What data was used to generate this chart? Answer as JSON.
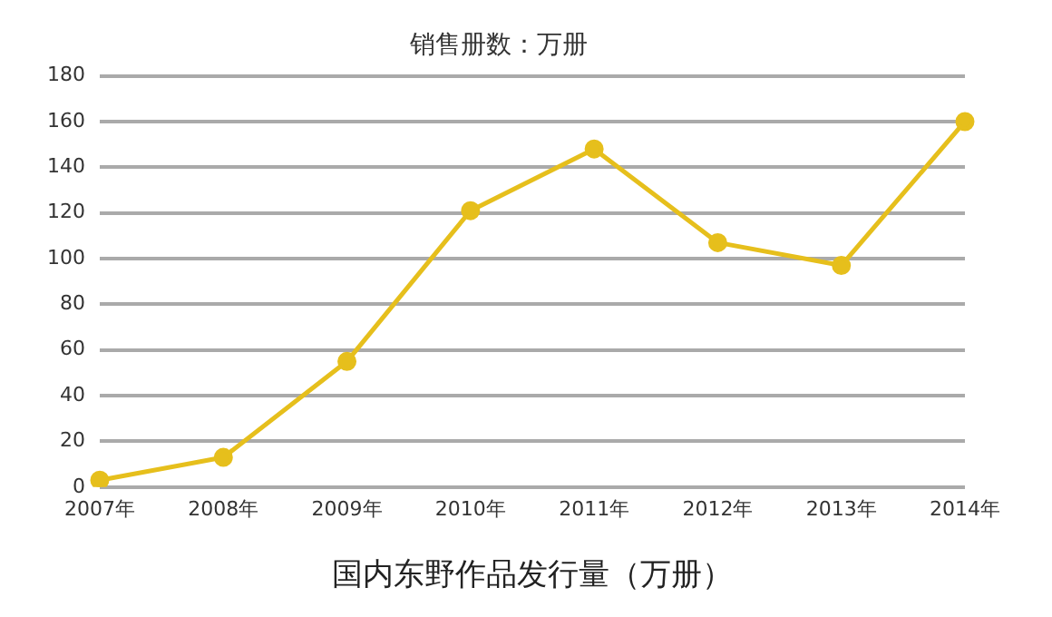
{
  "chart_data": {
    "type": "line",
    "title": "销售册数：万册",
    "xlabel": "国内东野作品发行量（万册）",
    "categories": [
      "2007年",
      "2008年",
      "2009年",
      "2010年",
      "2011年",
      "2012年",
      "2013年",
      "2014年"
    ],
    "series": [
      {
        "color": "#e6bf1c",
        "values": [
          3,
          13,
          55,
          121,
          148,
          107,
          97,
          160
        ]
      }
    ],
    "ylim": [
      0,
      180
    ],
    "yticks": [
      0,
      20,
      40,
      60,
      80,
      100,
      120,
      140,
      160,
      180
    ],
    "grid": "y",
    "marker": "circle",
    "line_style": "solid",
    "legend": false
  }
}
